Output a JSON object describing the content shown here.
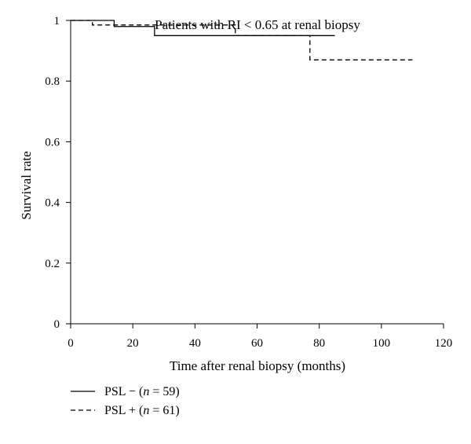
{
  "chart_data": {
    "type": "line",
    "title": "Patients with RI < 0.65 at renal biopsy",
    "xlabel": "Time after renal biopsy (months)",
    "ylabel": "Survival rate",
    "xlim": [
      0,
      120
    ],
    "ylim": [
      0,
      1
    ],
    "x_ticks": [
      "0",
      "20",
      "40",
      "60",
      "80",
      "100",
      "120"
    ],
    "y_ticks": [
      "0",
      "0.2",
      "0.4",
      "0.6",
      "0.8",
      "1"
    ],
    "grid": false,
    "legend_position": "bottom-left, below plot",
    "series": [
      {
        "name": "PSL − (n = 59)",
        "line_style": "solid",
        "color": "#000000",
        "legend_parts": [
          "PSL − (",
          "n",
          " = 59)"
        ],
        "steps": [
          [
            0,
            1.0
          ],
          [
            14,
            0.98
          ],
          [
            27,
            0.95
          ],
          [
            85,
            0.95
          ]
        ]
      },
      {
        "name": "PSL + (n = 61)",
        "line_style": "dashed",
        "color": "#000000",
        "legend_parts": [
          "PSL + (",
          "n",
          " = 61)"
        ],
        "steps": [
          [
            0,
            1.0
          ],
          [
            7,
            0.985
          ],
          [
            53,
            0.95
          ],
          [
            77,
            0.87
          ],
          [
            110,
            0.87
          ]
        ]
      }
    ]
  }
}
